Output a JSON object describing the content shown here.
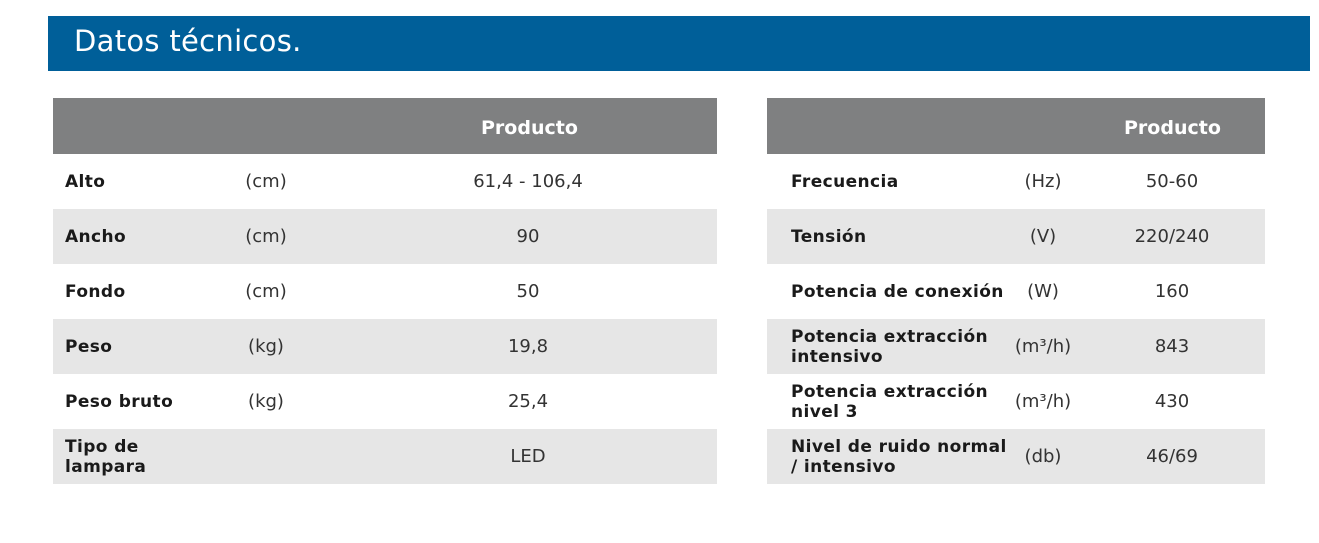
{
  "header": {
    "title": "Datos técnicos."
  },
  "left_table": {
    "column_title": "Producto",
    "rows": [
      {
        "label": "Alto",
        "unit": "(cm)",
        "value": "61,4 - 106,4"
      },
      {
        "label": "Ancho",
        "unit": "(cm)",
        "value": "90"
      },
      {
        "label": "Fondo",
        "unit": "(cm)",
        "value": "50"
      },
      {
        "label": "Peso",
        "unit": "(kg)",
        "value": "19,8"
      },
      {
        "label": "Peso bruto",
        "unit": "(kg)",
        "value": "25,4"
      },
      {
        "label": "Tipo de lampara",
        "unit": "",
        "value": "LED"
      }
    ]
  },
  "right_table": {
    "column_title": "Producto",
    "rows": [
      {
        "label": "Frecuencia",
        "unit": "(Hz)",
        "value": "50-60"
      },
      {
        "label": "Tensión",
        "unit": "(V)",
        "value": "220/240"
      },
      {
        "label": "Potencia de conexión",
        "unit": "(W)",
        "value": "160"
      },
      {
        "label": "Potencia extracción intensivo",
        "unit": "(m³/h)",
        "value": "843"
      },
      {
        "label": "Potencia extracción nivel 3",
        "unit": "(m³/h)",
        "value": "430"
      },
      {
        "label": "Nivel de ruido normal / intensivo",
        "unit": "(db)",
        "value": "46/69"
      }
    ]
  },
  "colors": {
    "banner": "#005f99",
    "table_header": "#7f8081",
    "row_shade": "#e6e6e6"
  }
}
